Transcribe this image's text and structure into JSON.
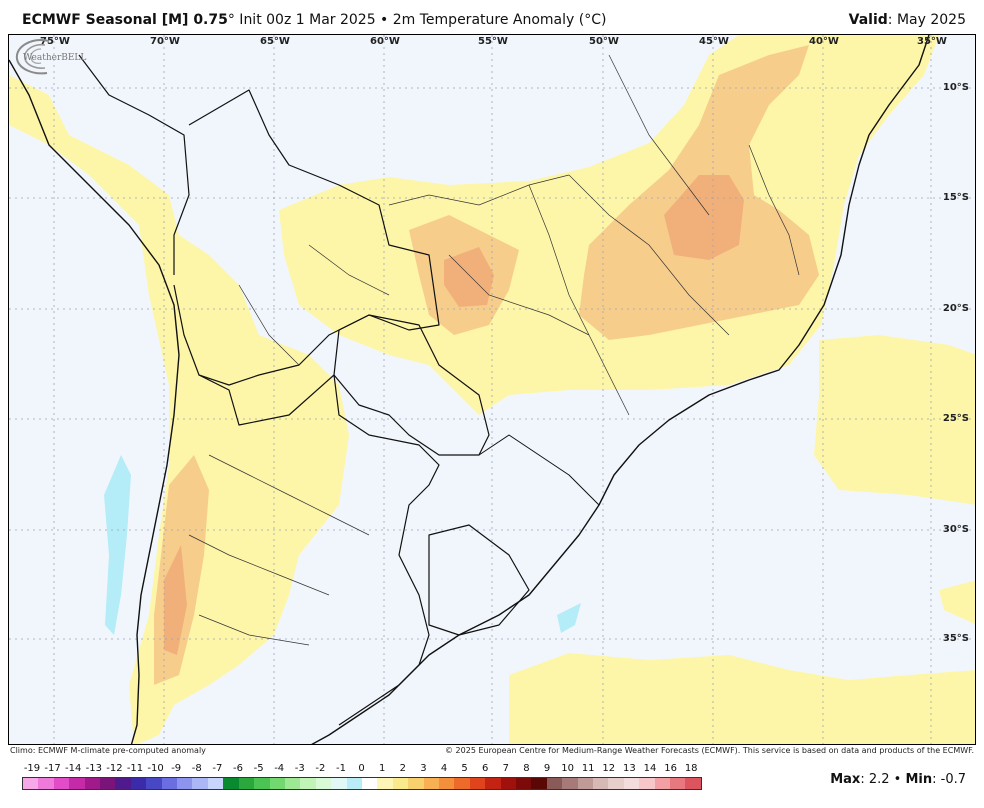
{
  "header": {
    "title_bold": "ECMWF Seasonal [M] 0.75",
    "title_rest": "° Init 00z 1 Mar 2025 • 2m Temperature Anomaly (°C)",
    "valid_label": "Valid",
    "valid_value": ": May 2025"
  },
  "map": {
    "lon_labels": [
      "75°W",
      "70°W",
      "65°W",
      "60°W",
      "55°W",
      "50°W",
      "45°W",
      "40°W",
      "35°W"
    ],
    "lat_labels": [
      "10°S",
      "15°S",
      "20°S",
      "25°S",
      "30°S",
      "35°S"
    ],
    "background_color": "#f1f6fd",
    "colors": {
      "light_yellow": "#fdf6a8",
      "yellow": "#fbea9a",
      "light_orange": "#f7cd8c",
      "orange": "#f1b07a",
      "dark_orange": "#e89263",
      "light_blue": "#b4ecf7"
    },
    "logo_text": "WeatherBELL"
  },
  "footer": {
    "climo": "Climo: ECMWF M-climate pre-computed anomaly",
    "copyright": "© 2025 European Centre for Medium-Range Weather Forecasts (ECMWF). This service is based on data and products of the ECMWF."
  },
  "colorbar": {
    "tick_labels": [
      "-19",
      "-17",
      "-14",
      "-13",
      "-12",
      "-11",
      "-10",
      "-9",
      "-8",
      "-7",
      "-6",
      "-5",
      "-4",
      "-3",
      "-2",
      "-1",
      "0",
      "1",
      "2",
      "3",
      "4",
      "5",
      "6",
      "7",
      "8",
      "9",
      "10",
      "11",
      "12",
      "13",
      "14",
      "16",
      "18"
    ],
    "colors": [
      "#f6a8e8",
      "#ee7ad9",
      "#e24cc7",
      "#c52ba8",
      "#a21a8a",
      "#7a1478",
      "#4e1a8c",
      "#3b2ba8",
      "#4848c4",
      "#6a6ee0",
      "#8c94ee",
      "#aab6f6",
      "#c8d6fb",
      "#0a8a2e",
      "#2aa83e",
      "#4cc454",
      "#74d870",
      "#9ee894",
      "#c2f4b8",
      "#d8fad6",
      "#e2f8f6",
      "#b8ecf6",
      "#ffffff",
      "#fdf6b6",
      "#fbe98e",
      "#f9d06e",
      "#f7b054",
      "#f4903c",
      "#ee6a2a",
      "#e0441c",
      "#c42212",
      "#a0100c",
      "#7c0a08",
      "#5a0806",
      "#8a5a58",
      "#a67a78",
      "#c09a96",
      "#d6b8b4",
      "#e8cecb",
      "#f4dcdc",
      "#f6c6c8",
      "#f2a0a6",
      "#e87880",
      "#dc545e"
    ]
  },
  "stats": {
    "max_label": "Max",
    "max_value": ": 2.2 • ",
    "min_label": "Min",
    "min_value": ": -0.7"
  },
  "chart_data": {
    "type": "heatmap",
    "title": "ECMWF Seasonal [M] 0.75° Init 00z 1 Mar 2025 • 2m Temperature Anomaly (°C)",
    "valid": "May 2025",
    "x_ticks": [
      "75°W",
      "70°W",
      "65°W",
      "60°W",
      "55°W",
      "50°W",
      "45°W",
      "40°W",
      "35°W"
    ],
    "y_ticks": [
      "10°S",
      "15°S",
      "20°S",
      "25°S",
      "30°S",
      "35°S"
    ],
    "xlim": [
      -76,
      -32
    ],
    "ylim": [
      -40,
      -8
    ],
    "colorbar_ticks": [
      -19,
      -17,
      -14,
      -13,
      -12,
      -11,
      -10,
      -9,
      -8,
      -7,
      -6,
      -5,
      -4,
      -3,
      -2,
      -1,
      0,
      1,
      2,
      3,
      4,
      5,
      6,
      7,
      8,
      9,
      10,
      11,
      12,
      13,
      14,
      16,
      18
    ],
    "max": 2.2,
    "min": -0.7
  }
}
